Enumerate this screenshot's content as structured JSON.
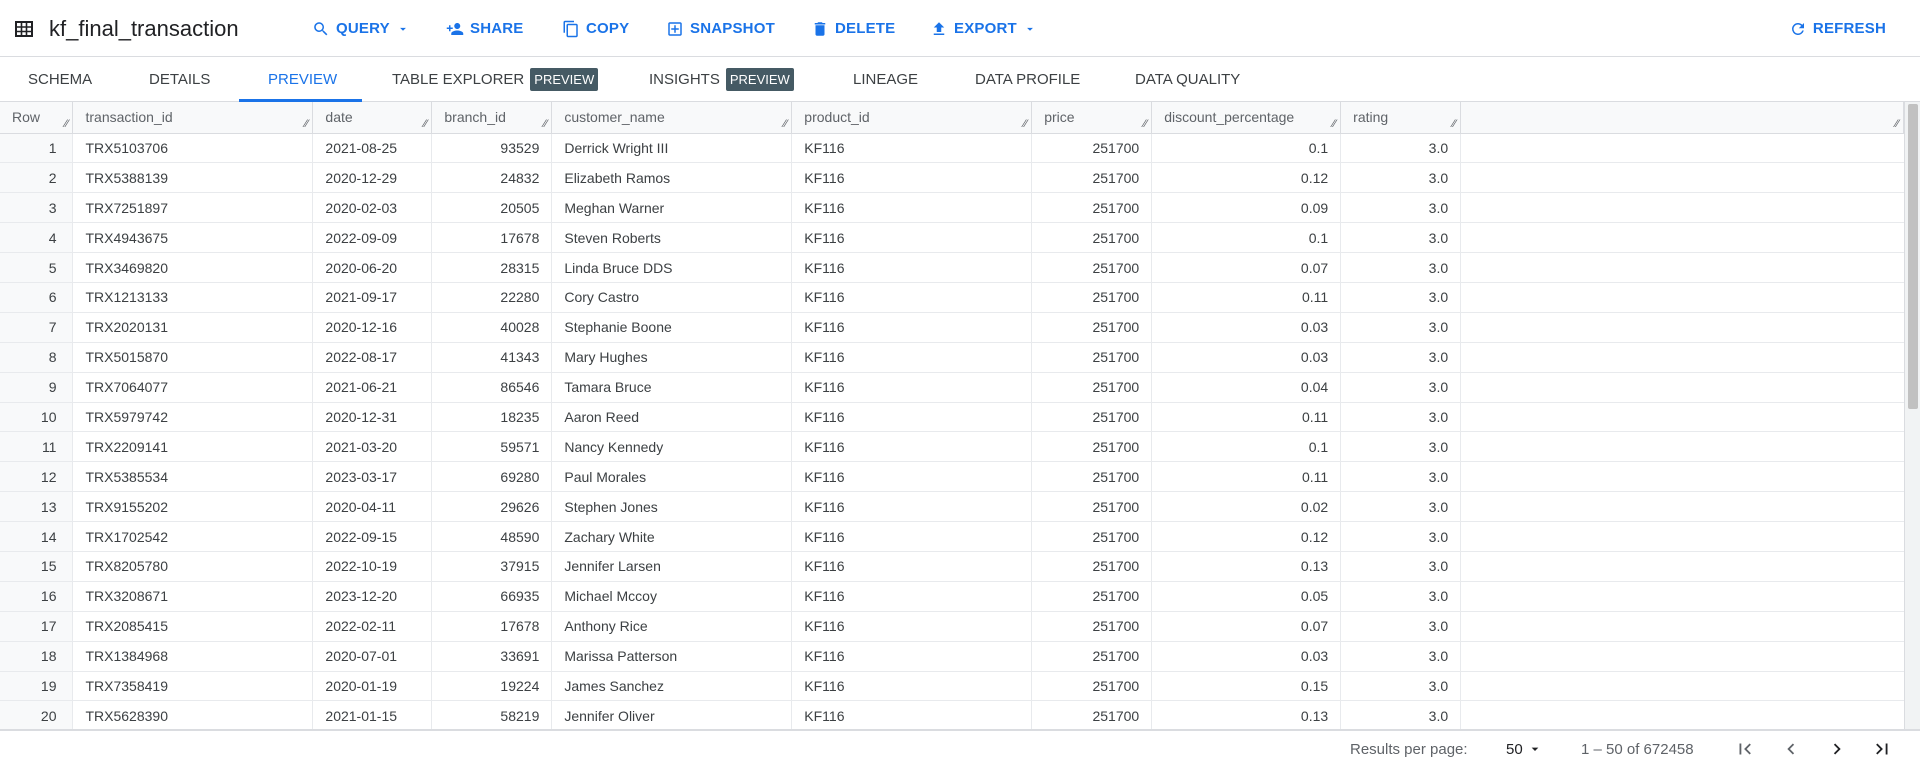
{
  "toolbar": {
    "title": "kf_final_transaction",
    "buttons": {
      "query": "QUERY",
      "share": "SHARE",
      "copy": "COPY",
      "snapshot": "SNAPSHOT",
      "delete": "DELETE",
      "export": "EXPORT",
      "refresh": "REFRESH"
    },
    "accent": "#1a73e8"
  },
  "tabs": [
    {
      "label": "SCHEMA"
    },
    {
      "label": "DETAILS"
    },
    {
      "label": "PREVIEW",
      "active": true
    },
    {
      "label": "TABLE EXPLORER",
      "badge": "PREVIEW"
    },
    {
      "label": "INSIGHTS",
      "badge": "PREVIEW"
    },
    {
      "label": "LINEAGE"
    },
    {
      "label": "DATA PROFILE"
    },
    {
      "label": "DATA QUALITY"
    }
  ],
  "table": {
    "columns": [
      "Row",
      "transaction_id",
      "date",
      "branch_id",
      "customer_name",
      "product_id",
      "price",
      "discount_percentage",
      "rating"
    ],
    "rows": [
      [
        "1",
        "TRX5103706",
        "2021-08-25",
        "93529",
        "Derrick Wright III",
        "KF116",
        "251700",
        "0.1",
        "3.0"
      ],
      [
        "2",
        "TRX5388139",
        "2020-12-29",
        "24832",
        "Elizabeth Ramos",
        "KF116",
        "251700",
        "0.12",
        "3.0"
      ],
      [
        "3",
        "TRX7251897",
        "2020-02-03",
        "20505",
        "Meghan Warner",
        "KF116",
        "251700",
        "0.09",
        "3.0"
      ],
      [
        "4",
        "TRX4943675",
        "2022-09-09",
        "17678",
        "Steven Roberts",
        "KF116",
        "251700",
        "0.1",
        "3.0"
      ],
      [
        "5",
        "TRX3469820",
        "2020-06-20",
        "28315",
        "Linda Bruce DDS",
        "KF116",
        "251700",
        "0.07",
        "3.0"
      ],
      [
        "6",
        "TRX1213133",
        "2021-09-17",
        "22280",
        "Cory Castro",
        "KF116",
        "251700",
        "0.11",
        "3.0"
      ],
      [
        "7",
        "TRX2020131",
        "2020-12-16",
        "40028",
        "Stephanie Boone",
        "KF116",
        "251700",
        "0.03",
        "3.0"
      ],
      [
        "8",
        "TRX5015870",
        "2022-08-17",
        "41343",
        "Mary Hughes",
        "KF116",
        "251700",
        "0.03",
        "3.0"
      ],
      [
        "9",
        "TRX7064077",
        "2021-06-21",
        "86546",
        "Tamara Bruce",
        "KF116",
        "251700",
        "0.04",
        "3.0"
      ],
      [
        "10",
        "TRX5979742",
        "2020-12-31",
        "18235",
        "Aaron Reed",
        "KF116",
        "251700",
        "0.11",
        "3.0"
      ],
      [
        "11",
        "TRX2209141",
        "2021-03-20",
        "59571",
        "Nancy Kennedy",
        "KF116",
        "251700",
        "0.1",
        "3.0"
      ],
      [
        "12",
        "TRX5385534",
        "2023-03-17",
        "69280",
        "Paul Morales",
        "KF116",
        "251700",
        "0.11",
        "3.0"
      ],
      [
        "13",
        "TRX9155202",
        "2020-04-11",
        "29626",
        "Stephen Jones",
        "KF116",
        "251700",
        "0.02",
        "3.0"
      ],
      [
        "14",
        "TRX1702542",
        "2022-09-15",
        "48590",
        "Zachary White",
        "KF116",
        "251700",
        "0.12",
        "3.0"
      ],
      [
        "15",
        "TRX8205780",
        "2022-10-19",
        "37915",
        "Jennifer Larsen",
        "KF116",
        "251700",
        "0.13",
        "3.0"
      ],
      [
        "16",
        "TRX3208671",
        "2023-12-20",
        "66935",
        "Michael Mccoy",
        "KF116",
        "251700",
        "0.05",
        "3.0"
      ],
      [
        "17",
        "TRX2085415",
        "2022-02-11",
        "17678",
        "Anthony Rice",
        "KF116",
        "251700",
        "0.07",
        "3.0"
      ],
      [
        "18",
        "TRX1384968",
        "2020-07-01",
        "33691",
        "Marissa Patterson",
        "KF116",
        "251700",
        "0.03",
        "3.0"
      ],
      [
        "19",
        "TRX7358419",
        "2020-01-19",
        "19224",
        "James Sanchez",
        "KF116",
        "251700",
        "0.15",
        "3.0"
      ],
      [
        "20",
        "TRX5628390",
        "2021-01-15",
        "58219",
        "Jennifer Oliver",
        "KF116",
        "251700",
        "0.13",
        "3.0"
      ]
    ]
  },
  "pagination": {
    "results_per_page_label": "Results per page:",
    "per_page": "50",
    "range": "1 – 50 of 672458"
  }
}
